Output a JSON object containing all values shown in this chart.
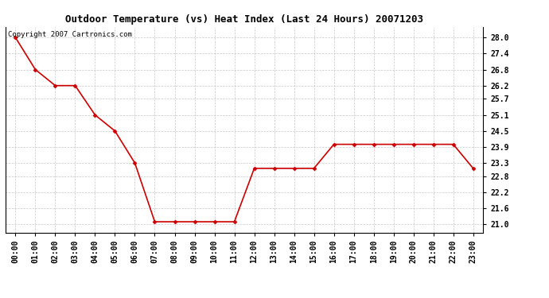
{
  "title": "Outdoor Temperature (vs) Heat Index (Last 24 Hours) 20071203",
  "copyright_text": "Copyright 2007 Cartronics.com",
  "x_labels": [
    "00:00",
    "01:00",
    "02:00",
    "03:00",
    "04:00",
    "05:00",
    "06:00",
    "07:00",
    "08:00",
    "09:00",
    "10:00",
    "11:00",
    "12:00",
    "13:00",
    "14:00",
    "15:00",
    "16:00",
    "17:00",
    "18:00",
    "19:00",
    "20:00",
    "21:00",
    "22:00",
    "23:00"
  ],
  "y_values": [
    28.0,
    26.8,
    26.2,
    26.2,
    25.1,
    24.5,
    23.3,
    21.1,
    21.1,
    21.1,
    21.1,
    21.1,
    23.1,
    23.1,
    23.1,
    23.1,
    24.0,
    24.0,
    24.0,
    24.0,
    24.0,
    24.0,
    24.0,
    23.1
  ],
  "line_color": "#cc0000",
  "marker": "D",
  "marker_size": 2.5,
  "marker_color": "#cc0000",
  "bg_color": "#ffffff",
  "grid_color": "#bbbbbb",
  "y_ticks": [
    21.0,
    21.6,
    22.2,
    22.8,
    23.3,
    23.9,
    24.5,
    25.1,
    25.7,
    26.2,
    26.8,
    27.4,
    28.0
  ],
  "ylim": [
    20.7,
    28.4
  ],
  "title_fontsize": 9,
  "tick_fontsize": 7,
  "copyright_fontsize": 6.5
}
